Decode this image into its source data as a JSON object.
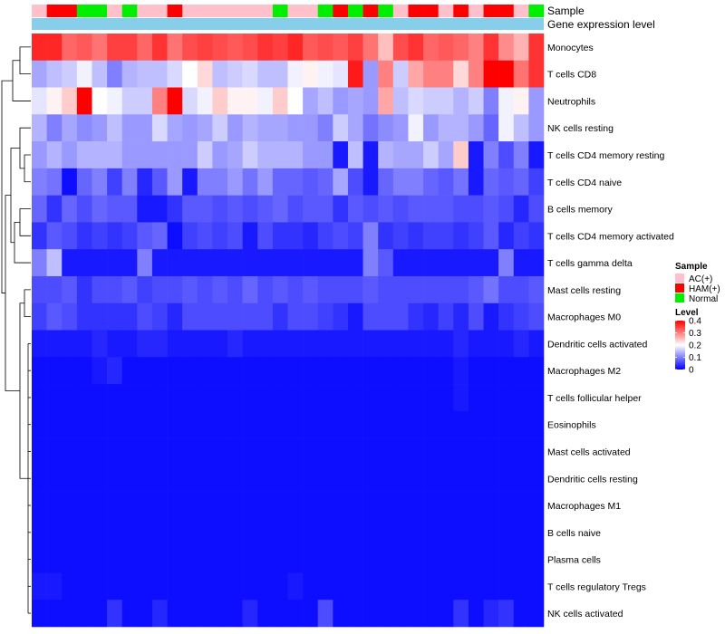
{
  "chart_data": {
    "type": "heatmap",
    "title": "",
    "annotation_labels": {
      "sample": "Sample",
      "group": "Gene expression level"
    },
    "rows": [
      "Monocytes",
      "T cells CD8",
      "Neutrophils",
      "NK cells resting",
      "T cells CD4 memory resting",
      "T cells CD4 naive",
      "B cells memory",
      "T cells CD4 memory activated",
      "T cells gamma delta",
      "Mast cells resting",
      "Macrophages M0",
      "Dendritic cells activated",
      "Macrophages M2",
      "T cells follicular helper",
      "Eosinophils",
      "Mast cells activated",
      "Dendritic cells resting",
      "Macrophages M1",
      "B cells naive",
      "Plasma cells",
      "T cells regulatory  Tregs",
      "NK cells activated"
    ],
    "sample_groups": [
      "AC",
      "HAM",
      "HAM",
      "Normal",
      "Normal",
      "AC",
      "Normal",
      "AC",
      "AC",
      "HAM",
      "AC",
      "AC",
      "AC",
      "AC",
      "AC",
      "AC",
      "Normal",
      "AC",
      "AC",
      "Normal",
      "HAM",
      "Normal",
      "HAM",
      "Normal",
      "AC",
      "HAM",
      "HAM",
      "AC",
      "HAM",
      "AC",
      "HAM",
      "HAM",
      "AC",
      "Normal"
    ],
    "legend_sample": {
      "title": "Sample",
      "entries": [
        {
          "label": "AC(+)",
          "color": "#ffc0cb"
        },
        {
          "label": "HAM(+)",
          "color": "#ff0000"
        },
        {
          "label": "Normal",
          "color": "#00ee00"
        }
      ]
    },
    "legend_level": {
      "title": "Level",
      "ticks": [
        0.4,
        0.3,
        0.2,
        0.1,
        0
      ],
      "tick_labels": [
        "0.4",
        "0.3",
        "0.2",
        "0.1",
        "0"
      ],
      "range": [
        0,
        0.4
      ]
    },
    "colors": {
      "low": "#0000ff",
      "mid": "#ffffff",
      "high": "#ff0000",
      "gene_bar": "#87ceeb"
    },
    "values": [
      [
        0.37,
        0.37,
        0.32,
        0.33,
        0.31,
        0.35,
        0.35,
        0.32,
        0.36,
        0.31,
        0.34,
        0.35,
        0.34,
        0.33,
        0.34,
        0.36,
        0.35,
        0.37,
        0.33,
        0.34,
        0.33,
        0.35,
        0.31,
        0.25,
        0.34,
        0.36,
        0.32,
        0.33,
        0.32,
        0.3,
        0.36,
        0.29,
        0.26,
        0.36
      ],
      [
        0.13,
        0.15,
        0.16,
        0.19,
        0.15,
        0.1,
        0.14,
        0.15,
        0.15,
        0.17,
        0.2,
        0.23,
        0.15,
        0.16,
        0.17,
        0.15,
        0.15,
        0.19,
        0.21,
        0.19,
        0.18,
        0.38,
        0.12,
        0.3,
        0.16,
        0.27,
        0.3,
        0.3,
        0.23,
        0.3,
        0.4,
        0.4,
        0.31,
        0.36
      ],
      [
        0.18,
        0.21,
        0.24,
        0.4,
        0.2,
        0.19,
        0.16,
        0.16,
        0.3,
        0.4,
        0.17,
        0.19,
        0.24,
        0.21,
        0.21,
        0.19,
        0.24,
        0.2,
        0.13,
        0.15,
        0.12,
        0.13,
        0.12,
        0.27,
        0.15,
        0.17,
        0.16,
        0.16,
        0.14,
        0.16,
        0.1,
        0.19,
        0.21,
        0.12
      ],
      [
        0.14,
        0.1,
        0.13,
        0.11,
        0.12,
        0.15,
        0.12,
        0.12,
        0.17,
        0.13,
        0.12,
        0.13,
        0.16,
        0.12,
        0.14,
        0.13,
        0.13,
        0.12,
        0.12,
        0.1,
        0.16,
        0.13,
        0.09,
        0.11,
        0.12,
        0.19,
        0.12,
        0.14,
        0.14,
        0.12,
        0.08,
        0.19,
        0.15,
        0.12
      ],
      [
        0.12,
        0.14,
        0.12,
        0.14,
        0.14,
        0.14,
        0.12,
        0.12,
        0.12,
        0.12,
        0.12,
        0.16,
        0.12,
        0.13,
        0.16,
        0.14,
        0.14,
        0.14,
        0.12,
        0.12,
        0.02,
        0.15,
        0.02,
        0.14,
        0.13,
        0.13,
        0.16,
        0.13,
        0.24,
        0.02,
        0.1,
        0.06,
        0.1,
        0.02
      ],
      [
        0.1,
        0.09,
        0.01,
        0.08,
        0.1,
        0.05,
        0.1,
        0.03,
        0.07,
        0.12,
        0.02,
        0.1,
        0.1,
        0.12,
        0.09,
        0.12,
        0.08,
        0.08,
        0.07,
        0.08,
        0.13,
        0.06,
        0.02,
        0.08,
        0.1,
        0.1,
        0.08,
        0.07,
        0.09,
        0.02,
        0.08,
        0.07,
        0.08,
        0.05
      ],
      [
        0.08,
        0.04,
        0.08,
        0.06,
        0.08,
        0.07,
        0.07,
        0.02,
        0.02,
        0.04,
        0.07,
        0.07,
        0.06,
        0.07,
        0.06,
        0.07,
        0.08,
        0.06,
        0.07,
        0.07,
        0.04,
        0.07,
        0.06,
        0.07,
        0.06,
        0.07,
        0.07,
        0.07,
        0.06,
        0.06,
        0.07,
        0.06,
        0.03,
        0.06
      ],
      [
        0.04,
        0.07,
        0.06,
        0.04,
        0.05,
        0.04,
        0.05,
        0.07,
        0.08,
        0.01,
        0.05,
        0.06,
        0.05,
        0.06,
        0.02,
        0.06,
        0.04,
        0.04,
        0.03,
        0.05,
        0.06,
        0.05,
        0.1,
        0.04,
        0.05,
        0.04,
        0.05,
        0.05,
        0.04,
        0.05,
        0.07,
        0.03,
        0.05,
        0.04
      ],
      [
        0.1,
        0.15,
        0.02,
        0.02,
        0.02,
        0.02,
        0.02,
        0.1,
        0.02,
        0.02,
        0.02,
        0.02,
        0.02,
        0.02,
        0.02,
        0.02,
        0.02,
        0.02,
        0.02,
        0.02,
        0.02,
        0.02,
        0.1,
        0.07,
        0.02,
        0.02,
        0.02,
        0.02,
        0.02,
        0.02,
        0.02,
        0.1,
        0.02,
        0.02
      ],
      [
        0.06,
        0.06,
        0.07,
        0.04,
        0.06,
        0.06,
        0.07,
        0.05,
        0.06,
        0.06,
        0.07,
        0.06,
        0.07,
        0.06,
        0.08,
        0.06,
        0.07,
        0.06,
        0.07,
        0.06,
        0.06,
        0.06,
        0.07,
        0.06,
        0.06,
        0.06,
        0.06,
        0.06,
        0.06,
        0.07,
        0.09,
        0.06,
        0.06,
        0.07
      ],
      [
        0.05,
        0.07,
        0.06,
        0.04,
        0.04,
        0.04,
        0.04,
        0.06,
        0.05,
        0.03,
        0.06,
        0.06,
        0.06,
        0.06,
        0.06,
        0.06,
        0.04,
        0.06,
        0.06,
        0.05,
        0.04,
        0.02,
        0.06,
        0.06,
        0.06,
        0.04,
        0.03,
        0.05,
        0.03,
        0.06,
        0.02,
        0.04,
        0.05,
        0.06
      ],
      [
        0.02,
        0.02,
        0.02,
        0.02,
        0.03,
        0.02,
        0.02,
        0.03,
        0.03,
        0.02,
        0.02,
        0.02,
        0.02,
        0.03,
        0.02,
        0.02,
        0.02,
        0.02,
        0.02,
        0.02,
        0.02,
        0.02,
        0.02,
        0.02,
        0.02,
        0.02,
        0.02,
        0.02,
        0.03,
        0.02,
        0.02,
        0.02,
        0.03,
        0.02
      ],
      [
        0.01,
        0.01,
        0.01,
        0.01,
        0.02,
        0.03,
        0.01,
        0.01,
        0.01,
        0.01,
        0.01,
        0.01,
        0.01,
        0.01,
        0.01,
        0.01,
        0.01,
        0.01,
        0.01,
        0.01,
        0.01,
        0.01,
        0.01,
        0.01,
        0.01,
        0.01,
        0.01,
        0.01,
        0.02,
        0.01,
        0.01,
        0.01,
        0.01,
        0.01
      ],
      [
        0.01,
        0.01,
        0.01,
        0.01,
        0.01,
        0.01,
        0.01,
        0.01,
        0.01,
        0.01,
        0.01,
        0.01,
        0.01,
        0.01,
        0.01,
        0.01,
        0.01,
        0.01,
        0.01,
        0.01,
        0.01,
        0.01,
        0.01,
        0.01,
        0.01,
        0.01,
        0.01,
        0.01,
        0.02,
        0.01,
        0.01,
        0.01,
        0.01,
        0.01
      ],
      [
        0.01,
        0.01,
        0.01,
        0.01,
        0.01,
        0.01,
        0.01,
        0.01,
        0.01,
        0.01,
        0.01,
        0.01,
        0.01,
        0.01,
        0.01,
        0.01,
        0.01,
        0.01,
        0.01,
        0.01,
        0.01,
        0.01,
        0.01,
        0.01,
        0.01,
        0.01,
        0.01,
        0.01,
        0.01,
        0.01,
        0.01,
        0.01,
        0.01,
        0.01
      ],
      [
        0.01,
        0.01,
        0.01,
        0.01,
        0.01,
        0.01,
        0.01,
        0.01,
        0.01,
        0.01,
        0.01,
        0.01,
        0.01,
        0.01,
        0.01,
        0.01,
        0.01,
        0.01,
        0.01,
        0.01,
        0.01,
        0.01,
        0.01,
        0.01,
        0.01,
        0.01,
        0.01,
        0.01,
        0.01,
        0.01,
        0.01,
        0.01,
        0.01,
        0.01
      ],
      [
        0.01,
        0.01,
        0.01,
        0.01,
        0.01,
        0.01,
        0.01,
        0.01,
        0.01,
        0.01,
        0.01,
        0.01,
        0.01,
        0.01,
        0.01,
        0.01,
        0.01,
        0.01,
        0.01,
        0.01,
        0.01,
        0.01,
        0.01,
        0.01,
        0.01,
        0.01,
        0.01,
        0.01,
        0.01,
        0.01,
        0.01,
        0.01,
        0.01,
        0.01
      ],
      [
        0.01,
        0.01,
        0.01,
        0.01,
        0.01,
        0.01,
        0.01,
        0.01,
        0.01,
        0.01,
        0.01,
        0.01,
        0.01,
        0.01,
        0.01,
        0.01,
        0.01,
        0.01,
        0.01,
        0.01,
        0.01,
        0.01,
        0.01,
        0.01,
        0.01,
        0.01,
        0.01,
        0.01,
        0.01,
        0.01,
        0.01,
        0.01,
        0.01,
        0.01
      ],
      [
        0.01,
        0.01,
        0.01,
        0.01,
        0.01,
        0.01,
        0.01,
        0.01,
        0.01,
        0.01,
        0.01,
        0.01,
        0.01,
        0.01,
        0.01,
        0.01,
        0.01,
        0.01,
        0.01,
        0.01,
        0.01,
        0.01,
        0.01,
        0.01,
        0.01,
        0.01,
        0.01,
        0.01,
        0.01,
        0.01,
        0.01,
        0.01,
        0.01,
        0.01
      ],
      [
        0.01,
        0.01,
        0.01,
        0.01,
        0.01,
        0.01,
        0.01,
        0.01,
        0.01,
        0.01,
        0.01,
        0.01,
        0.01,
        0.01,
        0.01,
        0.01,
        0.01,
        0.01,
        0.01,
        0.01,
        0.01,
        0.01,
        0.01,
        0.01,
        0.01,
        0.01,
        0.01,
        0.01,
        0.01,
        0.01,
        0.01,
        0.01,
        0.01,
        0.01
      ],
      [
        0.02,
        0.02,
        0.01,
        0.01,
        0.01,
        0.01,
        0.01,
        0.01,
        0.01,
        0.01,
        0.01,
        0.01,
        0.01,
        0.01,
        0.01,
        0.01,
        0.01,
        0.02,
        0.01,
        0.01,
        0.01,
        0.01,
        0.01,
        0.01,
        0.01,
        0.01,
        0.01,
        0.01,
        0.01,
        0.01,
        0.01,
        0.01,
        0.01,
        0.01
      ],
      [
        0.01,
        0.01,
        0.01,
        0.01,
        0.01,
        0.04,
        0.01,
        0.01,
        0.03,
        0.01,
        0.01,
        0.01,
        0.01,
        0.01,
        0.03,
        0.01,
        0.01,
        0.01,
        0.01,
        0.06,
        0.01,
        0.01,
        0.01,
        0.01,
        0.01,
        0.01,
        0.01,
        0.01,
        0.04,
        0.01,
        0.03,
        0.04,
        0.01,
        0.01
      ]
    ]
  }
}
